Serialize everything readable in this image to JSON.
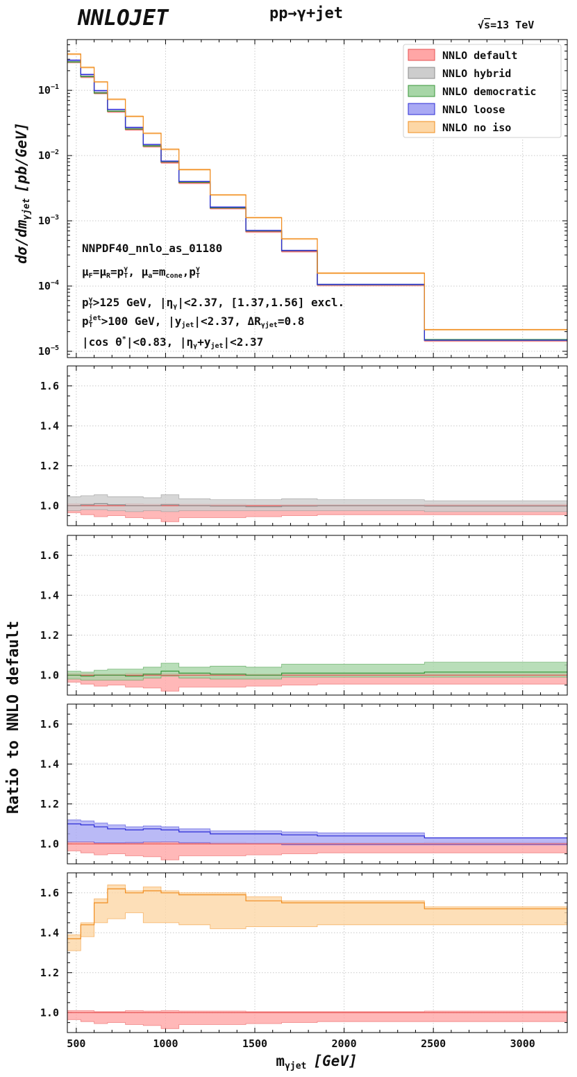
{
  "header": {
    "logo": "NNLOJET",
    "process": "pp→γ+jet",
    "energy_sqrt": "√",
    "energy_s": "s",
    "energy_value": "=13 TeV"
  },
  "axes": {
    "xlabel_m": "m",
    "xlabel_sub": "γjet",
    "xlabel_unit": "[GeV]",
    "ylabel_main_prefix": "dσ/dm",
    "ylabel_main_sub": "γjet",
    "ylabel_main_unit": "[pb/GeV]",
    "ylabel_ratio": "Ratio to NNLO default",
    "xticks": [
      "500",
      "1000",
      "1500",
      "2000",
      "2500",
      "3000"
    ],
    "main_yticks_mant": [
      "10",
      "10",
      "10",
      "10",
      "10"
    ],
    "main_yticks_exp": [
      "−1",
      "−2",
      "−3",
      "−4",
      "−5"
    ],
    "ratio_yticks": [
      "1.0",
      "1.2",
      "1.4",
      "1.6"
    ]
  },
  "annotations": {
    "pdf": "NNPDF40_nnlo_as_01180",
    "scales": "μF=μR=pTγ, μa=mcone,pTγ",
    "cut1": "pTγ>125 GeV, |ηγ|<2.37, [1.37,1.56] excl.",
    "cut2": "pTjet>100 GeV, |yjet|<2.37, ΔRγjet=0.8",
    "cut3": "|cos θ*|<0.83, |ηγ+yjet|<2.37",
    "s_mu": "μ",
    "s_F": "F",
    "s_eq": "=",
    "s_R": "R",
    "s_pT": "p",
    "s_T": "T",
    "s_gamma": "γ",
    "s_comma": ", ",
    "s_a": "a",
    "s_m": "m",
    "s_cone": "cone",
    "s_comma2": ",",
    "c1_rest": ">125 GeV, |η",
    "c1_gam": "γ",
    "c1_end": "|<2.37, [1.37,1.56] excl.",
    "c2_jet": "jet",
    "c2_rest": ">100 GeV, |y",
    "c2_mid": "|<2.37, ΔR",
    "c2_gj": "γjet",
    "c2_end": "=0.8",
    "c3_a": "|cos θ",
    "c3_star": "*",
    "c3_b": "|<0.83, |η",
    "c3_g": "γ",
    "c3_c": "+y",
    "c3_jet": "jet",
    "c3_d": "|<2.37"
  },
  "colors": {
    "default": {
      "fill": "#ffa6a6",
      "line": "#e65050"
    },
    "hybrid": {
      "fill": "#cdcdcd",
      "line": "#8c8c8c"
    },
    "democratic": {
      "fill": "#a7d6a7",
      "line": "#3a953a"
    },
    "loose": {
      "fill": "#a9a9f4",
      "line": "#2b2bd6"
    },
    "noiso": {
      "fill": "#fdd7a6",
      "line": "#f08c1e"
    }
  },
  "chart_data": {
    "type": "line",
    "title": "pp→γ+jet",
    "xlabel": "mγjet [GeV]",
    "ylabel": "dσ/dmγjet [pb/GeV]",
    "xlim": [
      450,
      3250
    ],
    "main_ylim": [
      8e-06,
      0.6
    ],
    "ratio_ylim": [
      0.9,
      1.7
    ],
    "bin_edges": [
      450,
      525,
      600,
      675,
      775,
      875,
      975,
      1075,
      1250,
      1450,
      1650,
      1850,
      2450,
      3250
    ],
    "main_series": [
      {
        "name": "NNLO default",
        "key": "default",
        "values": [
          0.27,
          0.16,
          0.09,
          0.047,
          0.025,
          0.0138,
          0.0078,
          0.0038,
          0.00155,
          0.00068,
          0.00034,
          0.000103,
          1.45e-05
        ],
        "band": [
          0.96,
          1.02
        ]
      },
      {
        "name": "NNLO hybrid",
        "key": "hybrid",
        "values": [
          0.275,
          0.165,
          0.093,
          0.048,
          0.026,
          0.0142,
          0.008,
          0.0039,
          0.0016,
          0.0007,
          0.00035,
          0.000104,
          1.47e-05
        ],
        "band": [
          0.97,
          1.03
        ]
      },
      {
        "name": "NNLO democratic",
        "key": "democratic",
        "values": [
          0.272,
          0.162,
          0.091,
          0.0478,
          0.0255,
          0.014,
          0.0081,
          0.0039,
          0.00158,
          0.0007,
          0.000348,
          0.000106,
          1.51e-05
        ],
        "band": [
          0.97,
          1.03
        ]
      },
      {
        "name": "NNLO loose",
        "key": "loose",
        "values": [
          0.29,
          0.175,
          0.099,
          0.051,
          0.027,
          0.0148,
          0.0082,
          0.004,
          0.00162,
          0.00071,
          0.00035,
          0.000106,
          1.48e-05
        ],
        "band": [
          0.97,
          1.03
        ]
      },
      {
        "name": "NNLO no iso",
        "key": "noiso",
        "values": [
          0.36,
          0.225,
          0.135,
          0.073,
          0.04,
          0.022,
          0.0125,
          0.0061,
          0.0025,
          0.00112,
          0.00053,
          0.000158,
          2.15e-05
        ],
        "band": [
          0.96,
          1.03
        ]
      }
    ],
    "ratio_panels": [
      {
        "panel": "hybrid",
        "series": [
          {
            "name": "NNLO default",
            "key": "default",
            "central": [
              1,
              1,
              1,
              1,
              1,
              1,
              1,
              1,
              1,
              1,
              1,
              1,
              1
            ],
            "low": [
              0.965,
              0.955,
              0.945,
              0.95,
              0.94,
              0.935,
              0.92,
              0.94,
              0.94,
              0.945,
              0.95,
              0.955,
              0.955
            ],
            "high": [
              1.01,
              1.01,
              1.005,
              1.005,
              1.01,
              1.008,
              1.01,
              1.008,
              1.008,
              1.005,
              1.005,
              1.005,
              1.008
            ]
          },
          {
            "name": "NNLO hybrid",
            "key": "hybrid",
            "central": [
              1.0,
              1.005,
              1.01,
              1.005,
              1.0,
              1.0,
              1.005,
              1.0,
              0.998,
              0.995,
              0.998,
              1.0,
              0.998
            ],
            "low": [
              0.975,
              0.98,
              0.98,
              0.975,
              0.97,
              0.975,
              0.97,
              0.975,
              0.975,
              0.975,
              0.975,
              0.975,
              0.97
            ],
            "high": [
              1.045,
              1.05,
              1.055,
              1.045,
              1.045,
              1.04,
              1.055,
              1.035,
              1.03,
              1.03,
              1.035,
              1.03,
              1.025
            ]
          }
        ]
      },
      {
        "panel": "democratic",
        "series": [
          {
            "name": "NNLO default",
            "key": "default",
            "central": [
              1,
              1,
              1,
              1,
              1,
              1,
              1,
              1,
              1,
              1,
              1,
              1,
              1
            ],
            "low": [
              0.965,
              0.955,
              0.945,
              0.95,
              0.94,
              0.935,
              0.92,
              0.94,
              0.94,
              0.945,
              0.95,
              0.955,
              0.955
            ],
            "high": [
              1.01,
              1.01,
              1.005,
              1.005,
              1.01,
              1.008,
              1.01,
              1.008,
              1.008,
              1.005,
              1.005,
              1.005,
              1.008
            ]
          },
          {
            "name": "NNLO democratic",
            "key": "democratic",
            "central": [
              1.0,
              0.995,
              1.0,
              1.0,
              0.995,
              1.005,
              1.02,
              1.01,
              1.005,
              1.0,
              1.01,
              1.01,
              1.015
            ],
            "low": [
              0.98,
              0.975,
              0.975,
              0.975,
              0.975,
              0.985,
              0.995,
              0.985,
              0.98,
              0.98,
              0.99,
              0.99,
              0.99
            ],
            "high": [
              1.02,
              1.015,
              1.025,
              1.03,
              1.03,
              1.04,
              1.06,
              1.04,
              1.045,
              1.04,
              1.055,
              1.055,
              1.065
            ]
          }
        ]
      },
      {
        "panel": "loose",
        "series": [
          {
            "name": "NNLO default",
            "key": "default",
            "central": [
              1,
              1,
              1,
              1,
              1,
              1,
              1,
              1,
              1,
              1,
              1,
              1,
              1
            ],
            "low": [
              0.965,
              0.955,
              0.945,
              0.95,
              0.94,
              0.935,
              0.92,
              0.94,
              0.94,
              0.945,
              0.95,
              0.955,
              0.955
            ],
            "high": [
              1.01,
              1.01,
              1.005,
              1.005,
              1.01,
              1.008,
              1.01,
              1.008,
              1.008,
              1.005,
              1.005,
              1.005,
              1.008
            ]
          },
          {
            "name": "NNLO loose",
            "key": "loose",
            "central": [
              1.1,
              1.095,
              1.085,
              1.075,
              1.07,
              1.075,
              1.07,
              1.06,
              1.05,
              1.05,
              1.045,
              1.04,
              1.03
            ],
            "low": [
              1.01,
              1.01,
              1.005,
              1.005,
              1.005,
              1.01,
              1.01,
              1.005,
              1.0,
              1.0,
              0.995,
              0.995,
              0.995
            ],
            "high": [
              1.12,
              1.115,
              1.105,
              1.095,
              1.085,
              1.09,
              1.085,
              1.075,
              1.065,
              1.065,
              1.06,
              1.055,
              1.03
            ]
          }
        ]
      },
      {
        "panel": "noiso",
        "series": [
          {
            "name": "NNLO default",
            "key": "default",
            "central": [
              1,
              1,
              1,
              1,
              1,
              1,
              1,
              1,
              1,
              1,
              1,
              1,
              1
            ],
            "low": [
              0.965,
              0.955,
              0.945,
              0.95,
              0.94,
              0.935,
              0.92,
              0.94,
              0.94,
              0.945,
              0.95,
              0.955,
              0.955
            ],
            "high": [
              1.01,
              1.01,
              1.005,
              1.005,
              1.01,
              1.008,
              1.01,
              1.008,
              1.008,
              1.005,
              1.005,
              1.005,
              1.008
            ]
          },
          {
            "name": "NNLO no iso",
            "key": "noiso",
            "central": [
              1.37,
              1.44,
              1.55,
              1.62,
              1.6,
              1.61,
              1.6,
              1.59,
              1.59,
              1.56,
              1.55,
              1.55,
              1.52
            ],
            "low": [
              1.31,
              1.38,
              1.45,
              1.47,
              1.5,
              1.45,
              1.45,
              1.44,
              1.42,
              1.43,
              1.43,
              1.44,
              1.44
            ],
            "high": [
              1.39,
              1.45,
              1.57,
              1.64,
              1.61,
              1.63,
              1.61,
              1.6,
              1.6,
              1.58,
              1.56,
              1.56,
              1.53
            ]
          }
        ]
      }
    ],
    "legend": [
      "NNLO default",
      "NNLO hybrid",
      "NNLO democratic",
      "NNLO loose",
      "NNLO no iso"
    ],
    "legend_position": "top-right"
  }
}
